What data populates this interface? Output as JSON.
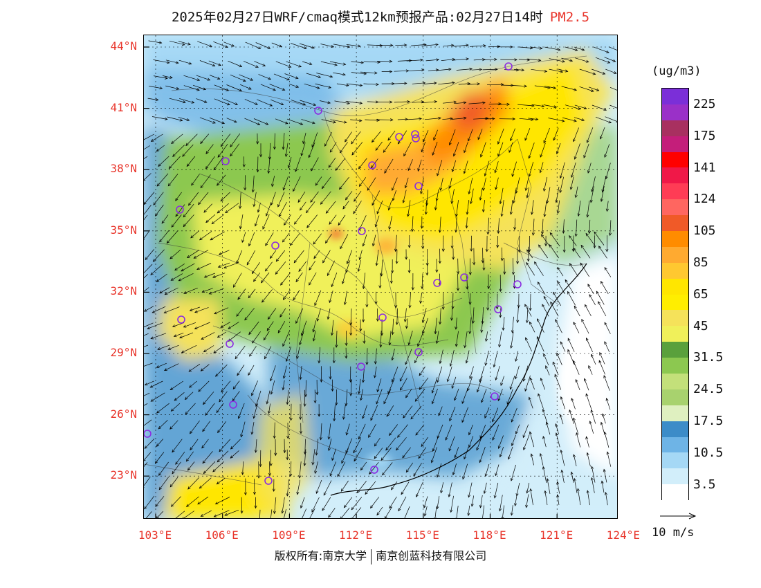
{
  "header": {
    "title": "2025年02月27日WRF/cmaq模式12km预报产品:02月27日14时",
    "pollutant": "PM2.5"
  },
  "map": {
    "lat_labels": [
      "44°N",
      "41°N",
      "38°N",
      "35°N",
      "32°N",
      "29°N",
      "26°N",
      "23°N"
    ],
    "lon_labels": [
      "103°E",
      "106°E",
      "109°E",
      "112°E",
      "115°E",
      "118°E",
      "121°E",
      "124°E"
    ],
    "city_marker_color": "#8a2be2"
  },
  "legend": {
    "unit": "(ug/m3)",
    "labels": [
      "225",
      "175",
      "141",
      "124",
      "105",
      "85",
      "65",
      "45",
      "31.5",
      "24.5",
      "17.5",
      "10.5",
      "3.5"
    ],
    "colors": [
      "#7b2fd8",
      "#9a30c8",
      "#a83060",
      "#c41e7a",
      "#ff0000",
      "#f01848",
      "#ff3c55",
      "#ff6660",
      "#f05a28",
      "#ff8c00",
      "#ffaa30",
      "#ffc830",
      "#ffe600",
      "#ffee00",
      "#f5e25a",
      "#f0f05a",
      "#5aa03c",
      "#8cc850",
      "#c3e07a",
      "#a8d26e",
      "#dff0c0",
      "#3c8cc8",
      "#6eb4e6",
      "#a5d8f5",
      "#d2eefa",
      "#ffffff"
    ]
  },
  "wind": {
    "reference_label": "10 m/s"
  },
  "footer": {
    "left": "版权所有:南京大学",
    "right": "南京创蓝科技有限公司"
  }
}
